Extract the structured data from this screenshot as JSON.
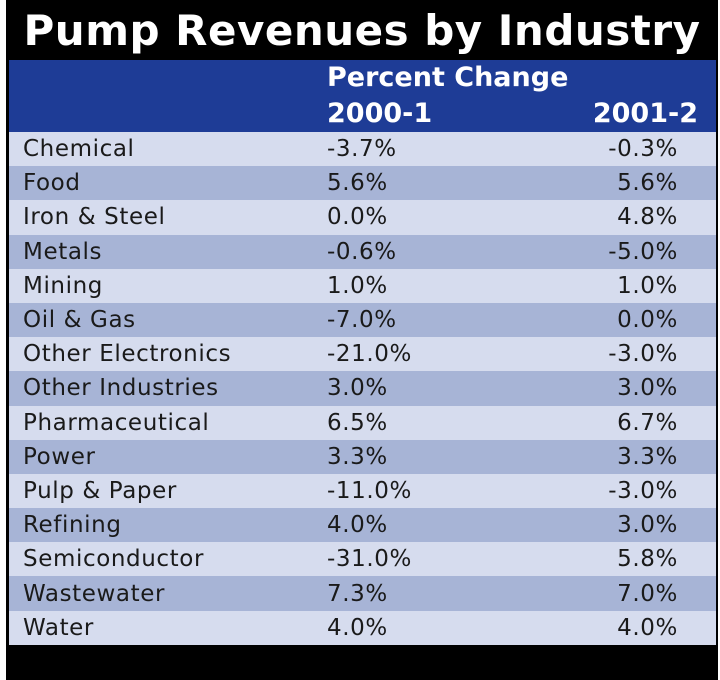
{
  "chart_data": {
    "type": "table",
    "title": "Pump Revenues by Industry",
    "column_group_label": "Percent Change",
    "columns": [
      "",
      "2000-1",
      "2001-2"
    ],
    "rows": [
      {
        "industry": "Chemical",
        "v2000_1": "-3.7%",
        "v2001_2": "-0.3%"
      },
      {
        "industry": "Food",
        "v2000_1": "5.6%",
        "v2001_2": "5.6%"
      },
      {
        "industry": "Iron & Steel",
        "v2000_1": "0.0%",
        "v2001_2": "4.8%"
      },
      {
        "industry": "Metals",
        "v2000_1": "-0.6%",
        "v2001_2": "-5.0%"
      },
      {
        "industry": "Mining",
        "v2000_1": "1.0%",
        "v2001_2": "1.0%"
      },
      {
        "industry": "Oil & Gas",
        "v2000_1": "-7.0%",
        "v2001_2": "0.0%"
      },
      {
        "industry": "Other Electronics",
        "v2000_1": "-21.0%",
        "v2001_2": "-3.0%"
      },
      {
        "industry": "Other Industries",
        "v2000_1": "3.0%",
        "v2001_2": "3.0%"
      },
      {
        "industry": "Pharmaceutical",
        "v2000_1": "6.5%",
        "v2001_2": "6.7%"
      },
      {
        "industry": "Power",
        "v2000_1": "3.3%",
        "v2001_2": "3.3%"
      },
      {
        "industry": "Pulp & Paper",
        "v2000_1": "-11.0%",
        "v2001_2": "-3.0%"
      },
      {
        "industry": "Refining",
        "v2000_1": "4.0%",
        "v2001_2": "3.0%"
      },
      {
        "industry": "Semiconductor",
        "v2000_1": "-31.0%",
        "v2001_2": "5.8%"
      },
      {
        "industry": "Wastewater",
        "v2000_1": "7.3%",
        "v2001_2": "7.0%"
      },
      {
        "industry": "Water",
        "v2000_1": "4.0%",
        "v2001_2": "4.0%"
      }
    ]
  },
  "colors": {
    "title_background": "#000000",
    "header_background": "#1e3c96",
    "row_light": "#d6dcee",
    "row_dark": "#a7b4d6"
  }
}
